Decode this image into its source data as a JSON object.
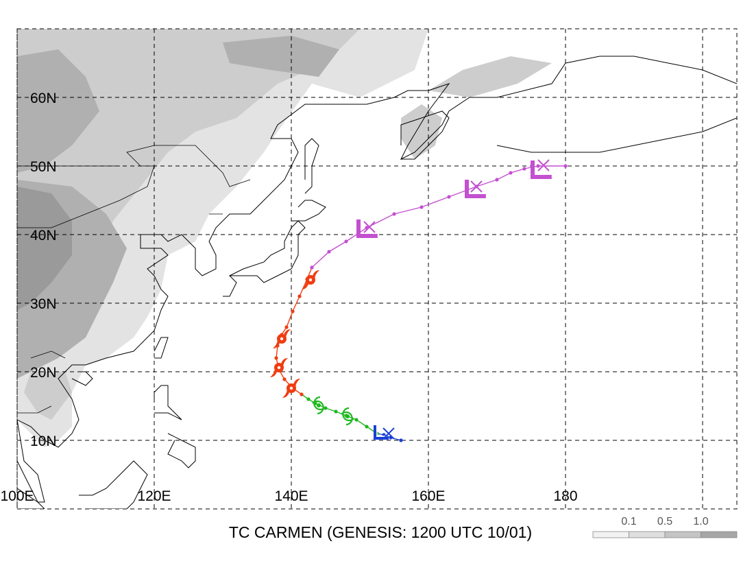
{
  "map": {
    "caption": "TC CARMEN (GENESIS: 1200 UTC 10/01)",
    "latitude_ticks": [
      {
        "value": 10,
        "label": "10N"
      },
      {
        "value": 20,
        "label": "20N"
      },
      {
        "value": 30,
        "label": "30N"
      },
      {
        "value": 40,
        "label": "40N"
      },
      {
        "value": 50,
        "label": "50N"
      },
      {
        "value": 60,
        "label": "60N"
      }
    ],
    "longitude_ticks": [
      {
        "value": 100,
        "label": "100E"
      },
      {
        "value": 120,
        "label": "120E"
      },
      {
        "value": 140,
        "label": "140E"
      },
      {
        "value": 160,
        "label": "160E"
      },
      {
        "value": 180,
        "label": "180"
      }
    ],
    "grid": true,
    "extent": {
      "lon": [
        100,
        205
      ],
      "lat": [
        0,
        70
      ]
    },
    "shading_scale": {
      "labels": [
        "0.1",
        "0.5",
        "1.0"
      ],
      "colors": [
        "#f2f2f2",
        "#dedede",
        "#c4c4c4",
        "#a6a6a6"
      ]
    },
    "terrain_colors": [
      "#e3e3e3",
      "#cdcdcd",
      "#b0b0b0",
      "#9a9a9a"
    ]
  },
  "track": {
    "stages": [
      {
        "name": "depression",
        "color": "#1a3fd6",
        "points": [
          [
            156.0,
            10.0
          ],
          [
            154.5,
            10.4
          ],
          [
            153.5,
            10.8
          ],
          [
            152.5,
            11.0
          ]
        ]
      },
      {
        "name": "storm",
        "color": "#1fb81f",
        "points": [
          [
            152.5,
            11.0
          ],
          [
            151.0,
            12.0
          ],
          [
            149.5,
            13.0
          ],
          [
            148.0,
            13.6
          ],
          [
            146.5,
            14.2
          ],
          [
            145.0,
            14.7
          ],
          [
            143.5,
            15.4
          ],
          [
            142.5,
            16.0
          ],
          [
            141.5,
            16.7
          ]
        ]
      },
      {
        "name": "typhoon",
        "color": "#f03c10",
        "points": [
          [
            141.5,
            16.7
          ],
          [
            140.2,
            17.6
          ],
          [
            139.0,
            18.9
          ],
          [
            138.2,
            20.3
          ],
          [
            137.8,
            22.0
          ],
          [
            138.0,
            23.8
          ],
          [
            138.6,
            25.4
          ],
          [
            139.3,
            26.5
          ],
          [
            140.2,
            28.8
          ],
          [
            141.2,
            31.0
          ],
          [
            142.3,
            33.5
          ],
          [
            143.0,
            35.2
          ]
        ]
      },
      {
        "name": "extratropical",
        "color": "#c44fd0",
        "points": [
          [
            143.0,
            35.2
          ],
          [
            145.5,
            37.5
          ],
          [
            148.0,
            39.0
          ],
          [
            151.0,
            41.0
          ],
          [
            155.0,
            43.0
          ],
          [
            159.0,
            44.0
          ],
          [
            163.0,
            45.5
          ],
          [
            167.0,
            47.0
          ],
          [
            170.0,
            48.0
          ],
          [
            172.0,
            49.0
          ],
          [
            174.0,
            49.6
          ],
          [
            176.0,
            50.0
          ],
          [
            180.0,
            50.0
          ]
        ]
      }
    ],
    "symbols": [
      {
        "type": "L-box",
        "lon": 152.8,
        "lat": 10.8,
        "color": "#1a3fd6",
        "size": 14
      },
      {
        "type": "x",
        "lon": 154.2,
        "lat": 11.0,
        "color": "#1a3fd6",
        "size": 8
      },
      {
        "type": "storm",
        "lon": 148.2,
        "lat": 13.5,
        "color": "#1fb81f"
      },
      {
        "type": "storm",
        "lon": 144.0,
        "lat": 15.1,
        "color": "#1fb81f"
      },
      {
        "type": "typhoon",
        "lon": 140.0,
        "lat": 17.6,
        "color": "#f03c10"
      },
      {
        "type": "typhoon",
        "lon": 138.2,
        "lat": 20.6,
        "color": "#f03c10"
      },
      {
        "type": "typhoon",
        "lon": 138.6,
        "lat": 24.8,
        "color": "#f03c10"
      },
      {
        "type": "typhoon",
        "lon": 142.8,
        "lat": 33.4,
        "color": "#f03c10"
      },
      {
        "type": "L",
        "lon": 150.4,
        "lat": 41.0,
        "color": "#c44fd0",
        "size": 24
      },
      {
        "type": "x",
        "lon": 151.4,
        "lat": 41.1,
        "color": "#c44fd0",
        "size": 8
      },
      {
        "type": "L",
        "lon": 166.2,
        "lat": 46.8,
        "color": "#c44fd0",
        "size": 24
      },
      {
        "type": "x",
        "lon": 167.0,
        "lat": 47.0,
        "color": "#c44fd0",
        "size": 8
      },
      {
        "type": "L",
        "lon": 175.8,
        "lat": 49.6,
        "color": "#c44fd0",
        "size": 24
      },
      {
        "type": "x",
        "lon": 176.8,
        "lat": 50.1,
        "color": "#c44fd0",
        "size": 8
      }
    ]
  }
}
